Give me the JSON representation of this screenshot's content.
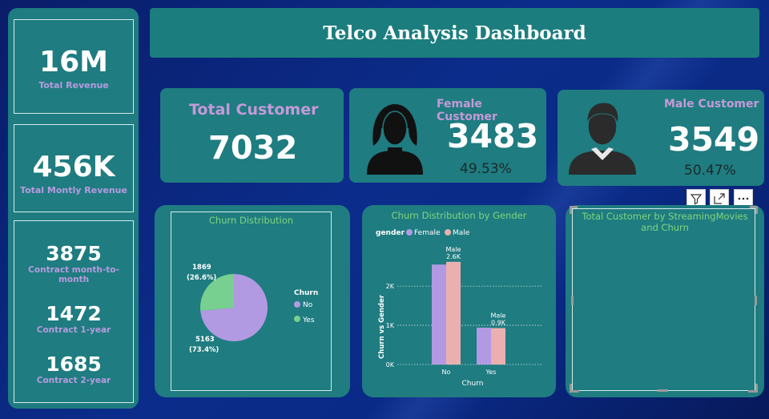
{
  "header": {
    "title": "Telco Analysis Dashboard"
  },
  "sidebar": {
    "total_revenue": {
      "value": "16M",
      "label": "Total Revenue"
    },
    "monthly_revenue": {
      "value": "456K",
      "label": "Total Montly Revenue"
    },
    "contracts": [
      {
        "value": "3875",
        "label": "Contract month-to-month"
      },
      {
        "value": "1472",
        "label": "Contract 1-year"
      },
      {
        "value": "1685",
        "label": "Contract 2-year"
      }
    ]
  },
  "kpis": {
    "total_customer": {
      "label": "Total Customer",
      "value": "7032"
    },
    "female": {
      "label": "Female Customer",
      "value": "3483",
      "percent": "49.53%"
    },
    "male": {
      "label": "Male Customer",
      "value": "3549",
      "percent": "50.47%"
    }
  },
  "visual_header": {
    "icons": [
      "filter-icon",
      "focus-mode-icon",
      "more-options-icon"
    ]
  },
  "colors": {
    "panel": "#1f7c80",
    "female": "#b29ae3",
    "male": "#eab0b0",
    "yes": "#77d08f",
    "no": "#b29ae3",
    "kpi_title": "#c49ad8"
  },
  "chart_data": [
    {
      "type": "pie",
      "title": "Churn Distribution",
      "legend_title": "Churn",
      "legend_position": "right",
      "slices": [
        {
          "name": "No",
          "value": 5163,
          "label_count": "5163",
          "label_pct": "(73.4%)",
          "color": "#b29ae3"
        },
        {
          "name": "Yes",
          "value": 1869,
          "label_count": "1869",
          "label_pct": "(26.6%)",
          "color": "#77d08f"
        }
      ]
    },
    {
      "type": "bar",
      "title": "Churn Distribution by Gender",
      "legend_title": "gender",
      "legend_position": "top-left",
      "categories": [
        "No",
        "Yes"
      ],
      "xlabel": "Churn",
      "ylabel": "Churn vs Gender",
      "ylim": [
        0,
        2800
      ],
      "yticks": [
        0,
        1000,
        2000
      ],
      "ytick_labels": [
        "0K",
        "1K",
        "2K"
      ],
      "series": [
        {
          "name": "Female",
          "values": [
            2550,
            940
          ],
          "color": "#b29ae3"
        },
        {
          "name": "Male",
          "values": [
            2620,
            930
          ],
          "color": "#eab0b0"
        }
      ],
      "annotations": [
        {
          "category": "No",
          "series": "Male",
          "name": "Male",
          "text": "2.6K"
        },
        {
          "category": "Yes",
          "series": "Male",
          "name": "Male",
          "text": "0.9K"
        }
      ]
    },
    {
      "type": "bar",
      "title": "Total Customer by StreamingMovies and Churn",
      "categories": [],
      "series": []
    }
  ]
}
